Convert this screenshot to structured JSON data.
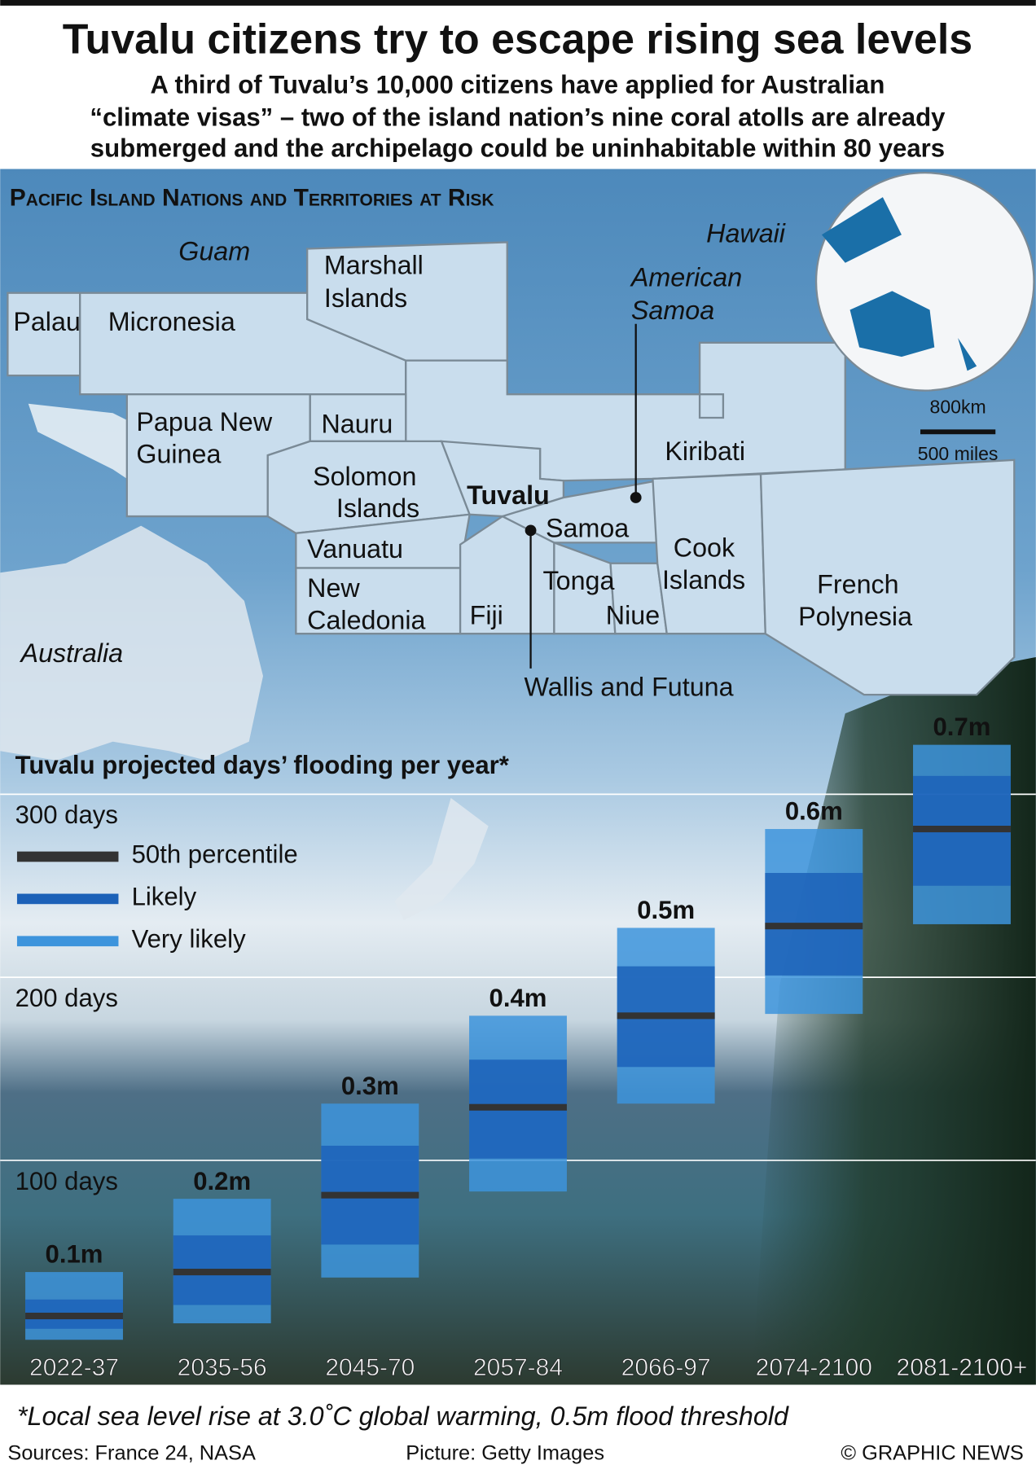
{
  "header": {
    "title": "Tuvalu citizens try to escape rising sea levels",
    "subtitle": [
      "A third of Tuvalu’s 10,000 citizens have applied for Australian",
      "“climate visas” – two of the island nation’s nine coral atolls are already",
      "submerged and the archipelago could be uninhabitable within 80 years"
    ]
  },
  "map": {
    "title": "Pacific Island Nations and Territories  at Risk",
    "labels": {
      "guam": "Guam",
      "hawaii": "Hawaii",
      "marshall": [
        "Marshall",
        "Islands"
      ],
      "american_samoa": [
        "American",
        "Samoa"
      ],
      "palau": "Palau",
      "micronesia": "Micronesia",
      "png": [
        "Papua New",
        "Guinea"
      ],
      "nauru": "Nauru",
      "kiribati": "Kiribati",
      "solomon": [
        "Solomon",
        "Islands"
      ],
      "tuvalu": "Tuvalu",
      "samoa": "Samoa",
      "vanuatu": "Vanuatu",
      "tonga": "Tonga",
      "cook": [
        "Cook",
        "Islands"
      ],
      "new_caledonia": [
        "New",
        "Caledonia"
      ],
      "fiji": "Fiji",
      "niue": "Niue",
      "french_polynesia": [
        "French",
        "Polynesia"
      ],
      "australia": "Australia",
      "wallis": "Wallis and Futuna"
    },
    "scale": [
      "800km",
      "500 miles"
    ]
  },
  "chart_data": {
    "type": "range_bar",
    "title": "Tuvalu projected days’ flooding per year*",
    "categories": [
      "2022-37",
      "2035-56",
      "2045-70",
      "2057-84",
      "2066-97",
      "2074-2100",
      "2081-2100+"
    ],
    "bar_labels": [
      "0.1m",
      "0.2m",
      "0.3m",
      "0.4m",
      "0.5m",
      "0.6m",
      "0.7m"
    ],
    "series": [
      {
        "name": "Very likely",
        "color": "#3d94dc",
        "low": [
          2,
          11,
          36,
          83,
          131,
          180,
          229
        ],
        "high": [
          39,
          79,
          131,
          179,
          227,
          281,
          327
        ]
      },
      {
        "name": "Likely",
        "color": "#1c61b8",
        "low": [
          8,
          21,
          54,
          101,
          151,
          201,
          250
        ],
        "high": [
          24,
          59,
          108,
          155,
          206,
          257,
          310
        ]
      },
      {
        "name": "50th percentile",
        "color": "#333333",
        "values": [
          15,
          39,
          81,
          129,
          179,
          228,
          281
        ]
      }
    ],
    "legend_order": [
      2,
      1,
      0
    ],
    "ylim": [
      0,
      330
    ],
    "yticks": [
      {
        "value": 100,
        "label": "100 days"
      },
      {
        "value": 200,
        "label": "200 days"
      },
      {
        "value": 300,
        "label": "300 days"
      }
    ],
    "grid": true
  },
  "footer": {
    "note": "*Local sea level rise at 3.0˚C global warming, 0.5m flood threshold",
    "sources": "Sources: France 24, NASA",
    "picture": "Picture: Getty Images",
    "credit": "© GRAPHIC NEWS"
  }
}
